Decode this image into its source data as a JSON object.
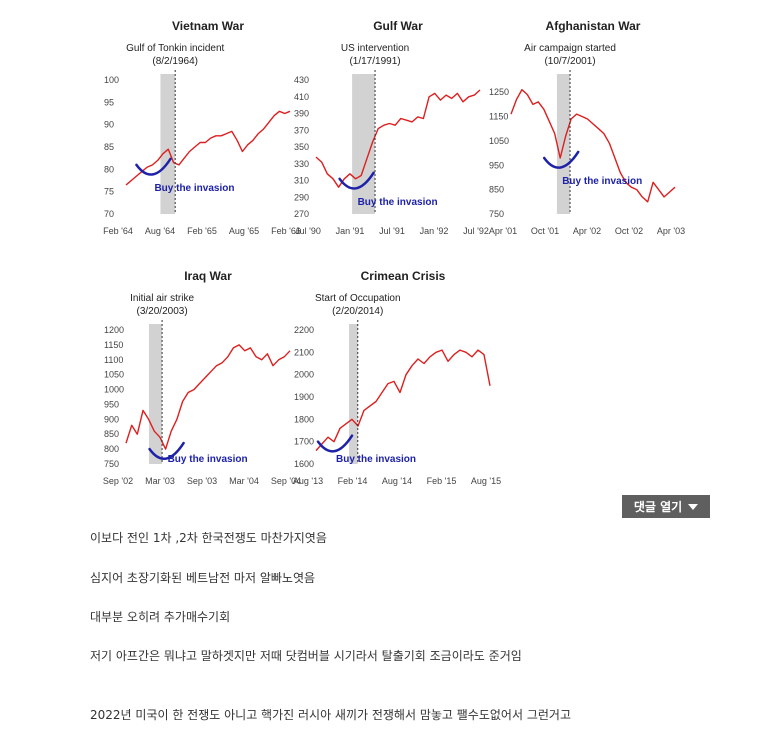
{
  "comment_button": {
    "label": "댓글 열기",
    "icon": "caret-down-icon"
  },
  "paragraphs": [
    "이보다 전인 1차 ,2차 한국전쟁도 마찬가지엿음",
    "심지어 초장기화된 베트남전 마저 알빠노엿음",
    "대부분 오히려 추가매수기회",
    "저기 아프간은 뭐냐고 말하겟지만 저때 닷컴버블 시기라서 탈출기회 조금이라도 준거임",
    "2022년 미국이 한 전쟁도 아니고  핵가진 러시아 새끼가 전쟁해서 맘놓고 팰수도없어서 그런거고"
  ],
  "colors": {
    "line": "#dd1f1f",
    "curve": "#1e22a8",
    "shade": "#d2d2d2",
    "button": "#5f5f5f"
  },
  "chart_data": [
    {
      "type": "line",
      "title": "Vietnam War",
      "annotation": [
        "Gulf of Tonkin incident",
        "(8/2/1964)"
      ],
      "buy_label": "Buy the invasion",
      "x_ticks": [
        "Feb '64",
        "Aug '64",
        "Feb '65",
        "Aug '65",
        "Feb '66"
      ],
      "y_ticks": [
        100,
        95,
        90,
        85,
        80,
        75,
        70
      ],
      "ylim": [
        70,
        100
      ],
      "event_position": 0.3,
      "shade_range": [
        0.21,
        0.3
      ],
      "series": [
        {
          "values": [
            76.5,
            77.5,
            78.5,
            79.5,
            80.5,
            81,
            82,
            83.5,
            84.5,
            81.5,
            81,
            82.5,
            84,
            85,
            86,
            86,
            87,
            87.5,
            87.5,
            88,
            88.5,
            86.5,
            84,
            85.5,
            86.5,
            88,
            89,
            90.5,
            92,
            93,
            92.5,
            93
          ]
        }
      ]
    },
    {
      "type": "line",
      "title": "Gulf War",
      "annotation": [
        "US intervention",
        "(1/17/1991)"
      ],
      "buy_label": "Buy the invasion",
      "x_ticks": [
        "Jul '90",
        "Jan '91",
        "Jul '91",
        "Jan '92",
        "Jul '92"
      ],
      "y_ticks": [
        430,
        410,
        390,
        370,
        350,
        330,
        310,
        290,
        270
      ],
      "ylim": [
        270,
        430
      ],
      "event_position": 0.36,
      "shade_range": [
        0.22,
        0.36
      ],
      "series": [
        {
          "values": [
            338,
            332,
            318,
            312,
            302,
            312,
            318,
            312,
            316,
            336,
            356,
            372,
            376,
            378,
            376,
            384,
            382,
            380,
            386,
            384,
            410,
            414,
            406,
            412,
            408,
            414,
            404,
            410,
            412,
            418
          ]
        }
      ]
    },
    {
      "type": "line",
      "title": "Afghanistan War",
      "annotation": [
        "Air campaign started",
        "(10/7/2001)"
      ],
      "buy_label": "Buy the invasion",
      "x_ticks": [
        "Apr '01",
        "Oct '01",
        "Apr '02",
        "Oct '02",
        "Apr '03"
      ],
      "y_ticks": [
        1250,
        1150,
        1050,
        950,
        850,
        750
      ],
      "ylim": [
        750,
        1300
      ],
      "event_position": 0.36,
      "shade_range": [
        0.28,
        0.36
      ],
      "series": [
        {
          "values": [
            1160,
            1220,
            1260,
            1240,
            1200,
            1210,
            1180,
            1130,
            1080,
            980,
            1070,
            1140,
            1160,
            1150,
            1140,
            1120,
            1100,
            1080,
            1040,
            980,
            920,
            880,
            860,
            850,
            820,
            800,
            880,
            850,
            820,
            840,
            860
          ]
        }
      ]
    },
    {
      "type": "line",
      "title": "Iraq War",
      "annotation": [
        "Initial air strike",
        "(3/20/2003)"
      ],
      "buy_label": "Buy the invasion",
      "x_ticks": [
        "Sep '02",
        "Mar '03",
        "Sep '03",
        "Mar '04",
        "Sep '04"
      ],
      "y_ticks": [
        1200,
        1150,
        1100,
        1050,
        1000,
        950,
        900,
        850,
        800,
        750
      ],
      "ylim": [
        750,
        1200
      ],
      "event_position": 0.22,
      "shade_range": [
        0.14,
        0.22
      ],
      "series": [
        {
          "values": [
            820,
            880,
            850,
            930,
            900,
            860,
            840,
            800,
            860,
            900,
            960,
            990,
            1000,
            1020,
            1040,
            1060,
            1080,
            1090,
            1110,
            1140,
            1150,
            1130,
            1140,
            1110,
            1100,
            1120,
            1080,
            1100,
            1110,
            1130
          ]
        }
      ]
    },
    {
      "type": "line",
      "title": "Crimean Crisis",
      "annotation": [
        "Start of Occupation",
        "(2/20/2014)"
      ],
      "buy_label": "Buy the invasion",
      "x_ticks": [
        "Aug '13",
        "Feb '14",
        "Aug '14",
        "Feb '15",
        "Aug '15"
      ],
      "y_ticks": [
        2200,
        2100,
        2000,
        1900,
        1800,
        1700,
        1600
      ],
      "ylim": [
        1600,
        2200
      ],
      "event_position": 0.24,
      "shade_range": [
        0.19,
        0.24
      ],
      "series": [
        {
          "values": [
            1660,
            1690,
            1720,
            1700,
            1760,
            1780,
            1800,
            1770,
            1840,
            1860,
            1880,
            1920,
            1960,
            1970,
            1920,
            2000,
            2040,
            2070,
            2050,
            2080,
            2100,
            2110,
            2060,
            2090,
            2110,
            2100,
            2080,
            2110,
            2090,
            1950
          ]
        }
      ]
    }
  ]
}
